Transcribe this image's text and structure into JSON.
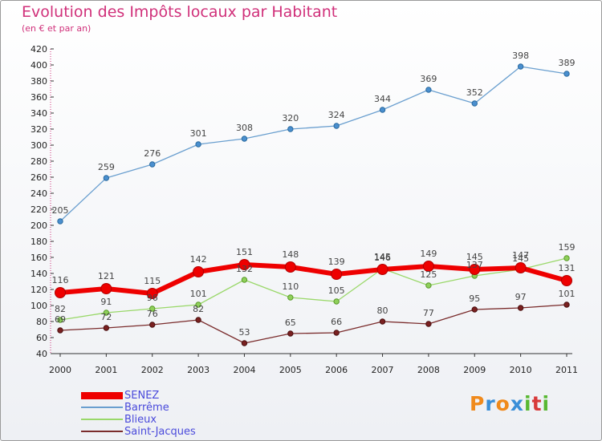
{
  "colors": {
    "title": "#d0307a",
    "legend_text": "#4a4adb",
    "SENEZ": "#ee0000",
    "Barrême": "#6a9fcf",
    "Blieux": "#9ad86a",
    "Saint-Jacques": "#7a2c2c"
  },
  "chart_data": {
    "type": "line",
    "title": "Evolution des Impôts locaux par Habitant",
    "subtitle": "(en € et par an)",
    "xlabel": "",
    "ylabel": "",
    "ylim": [
      40,
      420
    ],
    "yticks": [
      40,
      60,
      80,
      100,
      120,
      140,
      160,
      180,
      200,
      220,
      240,
      260,
      280,
      300,
      320,
      340,
      360,
      380,
      400,
      420
    ],
    "x": [
      "2000",
      "2001",
      "2002",
      "2003",
      "2004",
      "2005",
      "2006",
      "2007",
      "2008",
      "2009",
      "2010",
      "2011"
    ],
    "grid": false,
    "legend_position": "bottom-left",
    "series": [
      {
        "name": "Barrême",
        "values": [
          205,
          259,
          276,
          301,
          308,
          320,
          324,
          344,
          369,
          352,
          398,
          389
        ]
      },
      {
        "name": "Blieux",
        "values": [
          82,
          91,
          96,
          101,
          132,
          110,
          105,
          146,
          125,
          137,
          145,
          159
        ]
      },
      {
        "name": "Saint-Jacques",
        "values": [
          69,
          72,
          76,
          82,
          53,
          65,
          66,
          80,
          77,
          95,
          97,
          101
        ]
      },
      {
        "name": "SENEZ",
        "values": [
          116,
          121,
          115,
          142,
          151,
          148,
          139,
          145,
          149,
          145,
          147,
          131
        ]
      }
    ]
  },
  "legend": {
    "items": [
      "SENEZ",
      "Barrême",
      "Blieux",
      "Saint-Jacques"
    ]
  },
  "brand": {
    "letters": [
      "P",
      "r",
      "o",
      "x",
      "i",
      "t",
      "i"
    ],
    "colors": [
      "#f08a1c",
      "#3a8fd8",
      "#f08a1c",
      "#3a8fd8",
      "#58b832",
      "#d83a3a",
      "#58b832"
    ]
  }
}
